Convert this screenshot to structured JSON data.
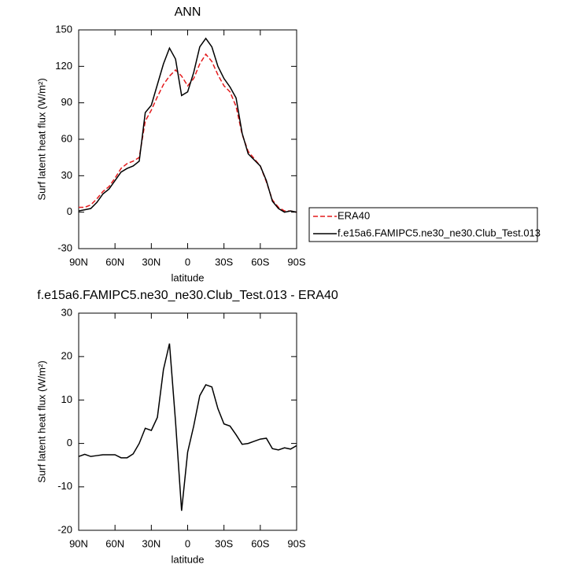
{
  "chart_data": [
    {
      "type": "line",
      "title": "ANN",
      "xlabel": "latitude",
      "ylabel": "Surf latent heat flux (W/m²)",
      "x": [
        90,
        85,
        80,
        75,
        70,
        65,
        60,
        55,
        50,
        45,
        40,
        35,
        30,
        25,
        20,
        15,
        10,
        5,
        0,
        -5,
        -10,
        -15,
        -20,
        -25,
        -30,
        -35,
        -40,
        -45,
        -50,
        -55,
        -60,
        -65,
        -70,
        -75,
        -80,
        -85,
        -90
      ],
      "series": [
        {
          "name": "ERA40",
          "color": "#e41a1c",
          "dash": true,
          "values": [
            4,
            4,
            6,
            11,
            17,
            21,
            28,
            36,
            40,
            42,
            45,
            75,
            84,
            95,
            105,
            112,
            117,
            112,
            104,
            110,
            122,
            130,
            124,
            113,
            104,
            99,
            87,
            64,
            50,
            44,
            38,
            25,
            10,
            4,
            1,
            1,
            0
          ]
        },
        {
          "name": "f.e15a6.FAMIPC5.ne30_ne30.Club_Test.013",
          "color": "#000000",
          "dash": false,
          "values": [
            1,
            2,
            3,
            8,
            15,
            19,
            26,
            33,
            36,
            38,
            42,
            82,
            88,
            105,
            122,
            135,
            126,
            96,
            99,
            115,
            136,
            143,
            136,
            120,
            110,
            103,
            94,
            65,
            48,
            43,
            38,
            26,
            9,
            3,
            0,
            1,
            0
          ]
        }
      ],
      "xlim": [
        90,
        -90
      ],
      "xticks": [
        {
          "value": 90,
          "label": "90N"
        },
        {
          "value": 60,
          "label": "60N"
        },
        {
          "value": 30,
          "label": "30N"
        },
        0,
        {
          "value": -30,
          "label": "30S"
        },
        {
          "value": -60,
          "label": "60S"
        },
        {
          "value": -90,
          "label": "90S"
        }
      ],
      "ylim": [
        -30,
        150
      ],
      "yticks": [
        -30,
        0,
        30,
        60,
        90,
        120,
        150
      ],
      "legend": "right"
    },
    {
      "type": "line",
      "title": "f.e15a6.FAMIPC5.ne30_ne30.Club_Test.013 - ERA40",
      "xlabel": "latitude",
      "ylabel": "Surf latent heat flux (W/m²)",
      "x": [
        90,
        85,
        80,
        75,
        70,
        65,
        60,
        55,
        50,
        45,
        40,
        35,
        30,
        25,
        20,
        15,
        10,
        5,
        0,
        -5,
        -10,
        -15,
        -20,
        -25,
        -30,
        -35,
        -40,
        -45,
        -50,
        -55,
        -60,
        -65,
        -70,
        -75,
        -80,
        -85,
        -90
      ],
      "values": [
        -3,
        -2.5,
        -3,
        -2.8,
        -2.6,
        -2.6,
        -2.6,
        -3.3,
        -3.3,
        -2.4,
        0,
        3.5,
        3,
        6,
        17,
        23,
        5,
        -15.5,
        -2,
        4,
        11,
        13.5,
        13,
        8,
        4.5,
        4,
        2,
        -0.2,
        0,
        0.5,
        1,
        1.2,
        -1.2,
        -1.5,
        -1,
        -1.3,
        -0.5
      ],
      "color": "#000000",
      "xlim": [
        90,
        -90
      ],
      "xticks": [
        {
          "value": 90,
          "label": "90N"
        },
        {
          "value": 60,
          "label": "60N"
        },
        {
          "value": 30,
          "label": "30N"
        },
        0,
        {
          "value": -30,
          "label": "30S"
        },
        {
          "value": -60,
          "label": "60S"
        },
        {
          "value": -90,
          "label": "90S"
        }
      ],
      "ylim": [
        -20,
        30
      ],
      "yticks": [
        -20,
        -10,
        0,
        10,
        20,
        30
      ]
    }
  ]
}
